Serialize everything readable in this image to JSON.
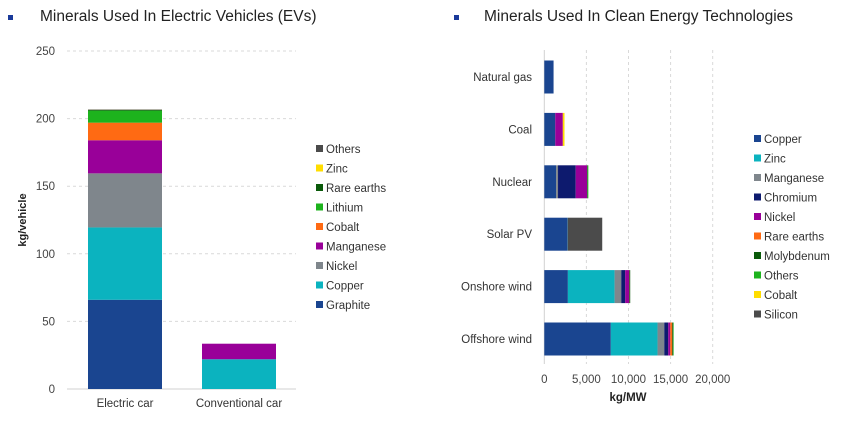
{
  "chart_data": [
    {
      "type": "bar",
      "orientation": "vertical",
      "stacked": true,
      "title": "Minerals Used In Electric Vehicles (EVs)",
      "xlabel": "",
      "ylabel": "kg/vehicle",
      "ylim": [
        0,
        250
      ],
      "yticks": [
        "0",
        "50",
        "100",
        "150",
        "200",
        "250"
      ],
      "grid": true,
      "legend_placement": "right",
      "categories": [
        "Electric car",
        "Conventional car"
      ],
      "series": [
        {
          "name": "Graphite",
          "color": "#1a4590",
          "values": [
            66,
            0
          ]
        },
        {
          "name": "Copper",
          "color": "#0bb3bf",
          "values": [
            53.5,
            22
          ]
        },
        {
          "name": "Nickel",
          "color": "#7f868c",
          "values": [
            40,
            0
          ]
        },
        {
          "name": "Manganese",
          "color": "#990099",
          "values": [
            24.5,
            11.5
          ]
        },
        {
          "name": "Cobalt",
          "color": "#ff6a13",
          "values": [
            13,
            0
          ]
        },
        {
          "name": "Lithium",
          "color": "#1db31d",
          "values": [
            8.9,
            0
          ]
        },
        {
          "name": "Rare earths",
          "color": "#0a5a0a",
          "values": [
            0.5,
            0
          ]
        },
        {
          "name": "Zinc",
          "color": "#ffdd00",
          "values": [
            0.1,
            0
          ]
        },
        {
          "name": "Others",
          "color": "#4b4b4b",
          "values": [
            0.3,
            0
          ]
        }
      ]
    },
    {
      "type": "bar",
      "orientation": "horizontal",
      "stacked": true,
      "title": "Minerals Used In Clean Energy Technologies",
      "xlabel": "kg/MW",
      "ylabel": "",
      "xlim": [
        0,
        20000
      ],
      "xticks": [
        "0",
        "5,000",
        "10,000",
        "15,000",
        "20,000"
      ],
      "grid": true,
      "legend_placement": "right",
      "categories": [
        "Natural gas",
        "Coal",
        "Nuclear",
        "Solar PV",
        "Onshore wind",
        "Offshore wind"
      ],
      "series": [
        {
          "name": "Copper",
          "color": "#1a4590",
          "values": [
            1100,
            1300,
            1400,
            2750,
            2800,
            7900
          ]
        },
        {
          "name": "Zinc",
          "color": "#0bb3bf",
          "values": [
            0,
            0,
            0,
            30,
            5550,
            5550
          ]
        },
        {
          "name": "Manganese",
          "color": "#7f868c",
          "values": [
            0,
            0,
            230,
            0,
            790,
            800
          ]
        },
        {
          "name": "Chromium",
          "color": "#0d1a6e",
          "values": [
            0,
            0,
            2100,
            0,
            470,
            470
          ]
        },
        {
          "name": "Nickel",
          "color": "#990099",
          "values": [
            0,
            900,
            1350,
            0,
            480,
            240
          ]
        },
        {
          "name": "Rare earths",
          "color": "#ff6a13",
          "values": [
            0,
            0,
            0,
            0,
            14,
            240
          ]
        },
        {
          "name": "Molybdenum",
          "color": "#0a5a0a",
          "values": [
            0,
            0,
            70,
            0,
            100,
            110
          ]
        },
        {
          "name": "Others",
          "color": "#1db31d",
          "values": [
            0,
            0,
            80,
            0,
            0,
            60
          ]
        },
        {
          "name": "Cobalt",
          "color": "#ffdd00",
          "values": [
            0,
            200,
            0,
            0,
            0,
            0
          ]
        },
        {
          "name": "Silicon",
          "color": "#4b4b4b",
          "values": [
            0,
            0,
            0,
            4100,
            0,
            0
          ]
        }
      ]
    }
  ],
  "bullet_color": "#1a3a9a"
}
